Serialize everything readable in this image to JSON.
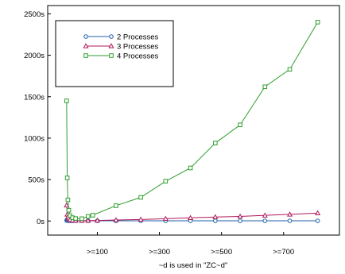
{
  "chart_data": {
    "type": "line",
    "xlabel": "~d is used in \"ZC~d\"",
    "ylabel": "",
    "xlim": [
      -60,
      880
    ],
    "ylim": [
      -170,
      2600
    ],
    "x_ticks": [
      {
        "value": 100,
        "label": ">=100"
      },
      {
        "value": 300,
        "label": ">=300"
      },
      {
        "value": 500,
        "label": ">=500"
      },
      {
        "value": 700,
        "label": ">=700"
      }
    ],
    "y_ticks": [
      {
        "value": 0,
        "label": "0s"
      },
      {
        "value": 500,
        "label": "500s"
      },
      {
        "value": 1000,
        "label": "1000s"
      },
      {
        "value": 1500,
        "label": "1500s"
      },
      {
        "value": 2000,
        "label": "2000s"
      },
      {
        "value": 2500,
        "label": "2500s"
      }
    ],
    "legend_position": "top-left",
    "series": [
      {
        "name": "2 Processes",
        "color": "#1f5fa8",
        "marker": "circle",
        "points": [
          [
            1,
            6
          ],
          [
            3,
            5
          ],
          [
            5,
            4
          ],
          [
            8,
            3
          ],
          [
            12,
            2
          ],
          [
            20,
            2
          ],
          [
            30,
            2
          ],
          [
            50,
            2
          ],
          [
            70,
            2
          ],
          [
            100,
            2
          ],
          [
            160,
            2
          ],
          [
            240,
            2
          ],
          [
            320,
            2
          ],
          [
            400,
            2
          ],
          [
            480,
            2
          ],
          [
            560,
            2
          ],
          [
            640,
            2
          ],
          [
            720,
            2
          ],
          [
            810,
            2
          ]
        ]
      },
      {
        "name": "3 Processes",
        "color": "#b0185a",
        "marker": "triangle",
        "points": [
          [
            1,
            190
          ],
          [
            3,
            80
          ],
          [
            5,
            50
          ],
          [
            8,
            30
          ],
          [
            12,
            15
          ],
          [
            20,
            8
          ],
          [
            30,
            5
          ],
          [
            50,
            4
          ],
          [
            70,
            5
          ],
          [
            100,
            6
          ],
          [
            160,
            12
          ],
          [
            240,
            18
          ],
          [
            320,
            28
          ],
          [
            400,
            38
          ],
          [
            480,
            48
          ],
          [
            560,
            55
          ],
          [
            640,
            68
          ],
          [
            720,
            80
          ],
          [
            810,
            95
          ]
        ]
      },
      {
        "name": "4 Processes",
        "color": "#2f9e2f",
        "marker": "square",
        "points": [
          [
            1,
            1450
          ],
          [
            3,
            520
          ],
          [
            5,
            255
          ],
          [
            8,
            130
          ],
          [
            12,
            65
          ],
          [
            20,
            40
          ],
          [
            30,
            30
          ],
          [
            50,
            28
          ],
          [
            70,
            55
          ],
          [
            85,
            70
          ],
          [
            160,
            185
          ],
          [
            240,
            285
          ],
          [
            320,
            480
          ],
          [
            400,
            640
          ],
          [
            480,
            940
          ],
          [
            560,
            1160
          ],
          [
            640,
            1620
          ],
          [
            720,
            1830
          ],
          [
            810,
            2400
          ]
        ]
      }
    ]
  }
}
